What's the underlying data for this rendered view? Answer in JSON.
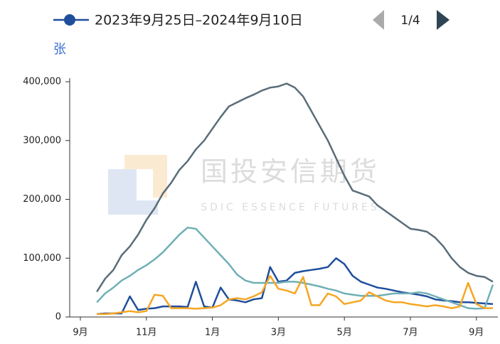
{
  "chart_data": {
    "type": "line",
    "legend_label": "2023年9月25日–2024年9月10日",
    "legend_page": "1/4",
    "y_label": "张",
    "watermark": "国投安信期货",
    "watermark_sub": "SDIC ESSENCE FUTURES",
    "categories": [
      "9月",
      null,
      null,
      null,
      null,
      null,
      null,
      null,
      "11月",
      null,
      null,
      null,
      null,
      null,
      null,
      null,
      "1月",
      null,
      null,
      null,
      null,
      null,
      null,
      null,
      "3月",
      null,
      null,
      null,
      null,
      null,
      null,
      null,
      "5月",
      null,
      null,
      null,
      null,
      null,
      null,
      null,
      "7月",
      null,
      null,
      null,
      null,
      null,
      null,
      null,
      "9月",
      null,
      null
    ],
    "ylim": [
      0,
      400000
    ],
    "yticks": [
      0,
      {
        "value": 100000,
        "label": "100,000"
      },
      {
        "value": 200000,
        "label": "200,000"
      },
      {
        "value": 300000,
        "label": "300,000"
      },
      {
        "value": 400000,
        "label": "400,000"
      }
    ],
    "series": [
      {
        "name": "2023年9月25日–2024年9月10日",
        "color": "#1f4e9c",
        "values": [
          null,
          null,
          5000,
          6000,
          6000,
          6000,
          35000,
          12000,
          14000,
          15000,
          18000,
          18000,
          18000,
          17000,
          60000,
          18000,
          16000,
          50000,
          30000,
          28000,
          25000,
          30000,
          32000,
          85000,
          60000,
          62000,
          75000,
          78000,
          80000,
          82000,
          85000,
          100000,
          90000,
          70000,
          60000,
          55000,
          50000,
          48000,
          45000,
          42000,
          40000,
          38000,
          35000,
          30000,
          28000,
          27000,
          25000,
          25000,
          24000,
          23000,
          22000
        ]
      },
      {
        "color": "#5a6d79",
        "values": [
          null,
          null,
          43000,
          65000,
          80000,
          105000,
          120000,
          140000,
          165000,
          185000,
          210000,
          228000,
          250000,
          265000,
          285000,
          300000,
          320000,
          340000,
          358000,
          365000,
          372000,
          378000,
          385000,
          390000,
          392000,
          397000,
          390000,
          375000,
          350000,
          325000,
          300000,
          270000,
          240000,
          215000,
          210000,
          205000,
          190000,
          180000,
          170000,
          160000,
          150000,
          148000,
          145000,
          135000,
          120000,
          100000,
          85000,
          75000,
          70000,
          68000,
          60000
        ]
      },
      {
        "color": "#6fb0b5",
        "values": [
          null,
          null,
          25000,
          40000,
          50000,
          62000,
          70000,
          80000,
          88000,
          98000,
          110000,
          125000,
          140000,
          152000,
          150000,
          135000,
          120000,
          105000,
          90000,
          72000,
          62000,
          58000,
          58000,
          58000,
          58000,
          60000,
          60000,
          58000,
          55000,
          52000,
          48000,
          45000,
          40000,
          38000,
          36000,
          36000,
          36000,
          38000,
          40000,
          40000,
          40000,
          42000,
          40000,
          35000,
          30000,
          25000,
          20000,
          15000,
          14000,
          15000,
          55000
        ]
      },
      {
        "color": "#f5a623",
        "values": [
          null,
          null,
          5000,
          5000,
          6000,
          8000,
          10000,
          8000,
          10000,
          38000,
          36000,
          15000,
          15000,
          15000,
          14000,
          15000,
          16000,
          20000,
          30000,
          32000,
          30000,
          35000,
          42000,
          70000,
          48000,
          45000,
          40000,
          68000,
          20000,
          20000,
          40000,
          35000,
          22000,
          25000,
          28000,
          42000,
          35000,
          28000,
          25000,
          25000,
          22000,
          20000,
          18000,
          20000,
          18000,
          15000,
          18000,
          58000,
          22000,
          15000,
          15000
        ]
      }
    ]
  }
}
